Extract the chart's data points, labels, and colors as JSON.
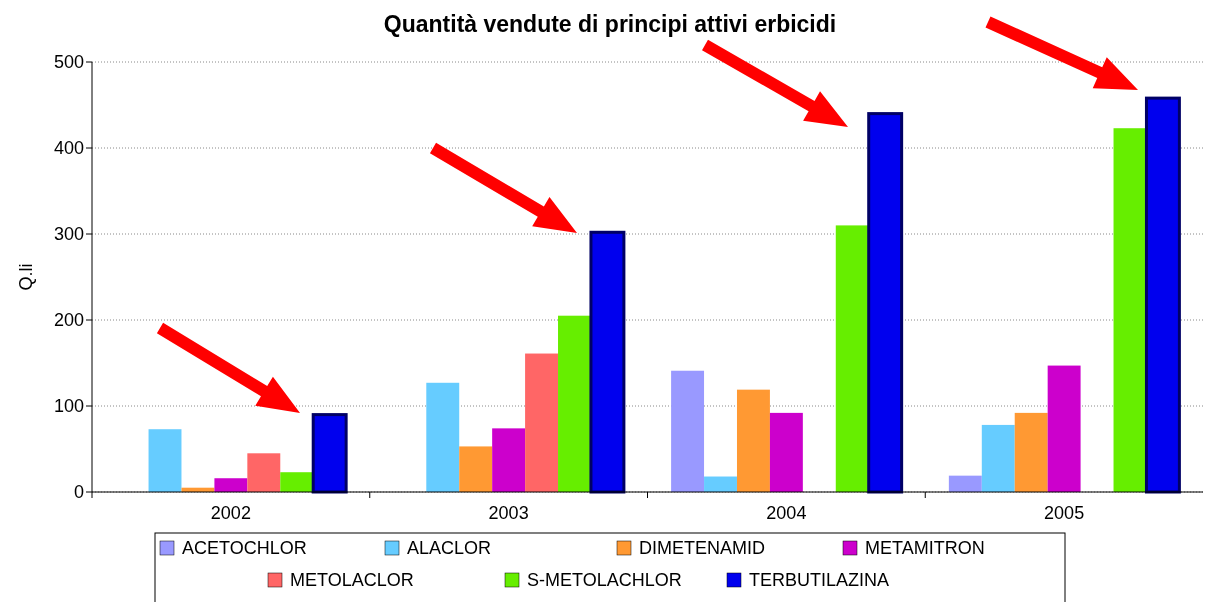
{
  "chart_data": {
    "type": "bar",
    "title": "Quantità vendute di principi attivi erbicidi",
    "ylabel": "Q.li",
    "categories": [
      "2002",
      "2003",
      "2004",
      "2005"
    ],
    "series": [
      {
        "name": "ACETOCHLOR",
        "color": "#9999ff",
        "values": [
          null,
          null,
          141,
          19
        ]
      },
      {
        "name": "ALACLOR",
        "color": "#66ccff",
        "values": [
          73,
          127,
          18,
          78
        ]
      },
      {
        "name": "DIMETENAMID",
        "color": "#ff9933",
        "values": [
          5,
          53,
          119,
          92
        ]
      },
      {
        "name": "METAMITRON",
        "color": "#cc00cc",
        "values": [
          16,
          74,
          92,
          147
        ]
      },
      {
        "name": "METOLACLOR",
        "color": "#ff6666",
        "values": [
          45,
          161,
          null,
          null
        ]
      },
      {
        "name": "S-METOLACHLOR",
        "color": "#66ee00",
        "values": [
          23,
          205,
          310,
          423
        ]
      },
      {
        "name": "TERBUTILAZINA",
        "color": "#0000ee",
        "values": [
          90,
          302,
          440,
          458
        ]
      }
    ],
    "ylim": [
      0,
      500
    ],
    "yticks": [
      0,
      100,
      200,
      300,
      400,
      500
    ],
    "grid": "y",
    "legend": "bottom"
  }
}
